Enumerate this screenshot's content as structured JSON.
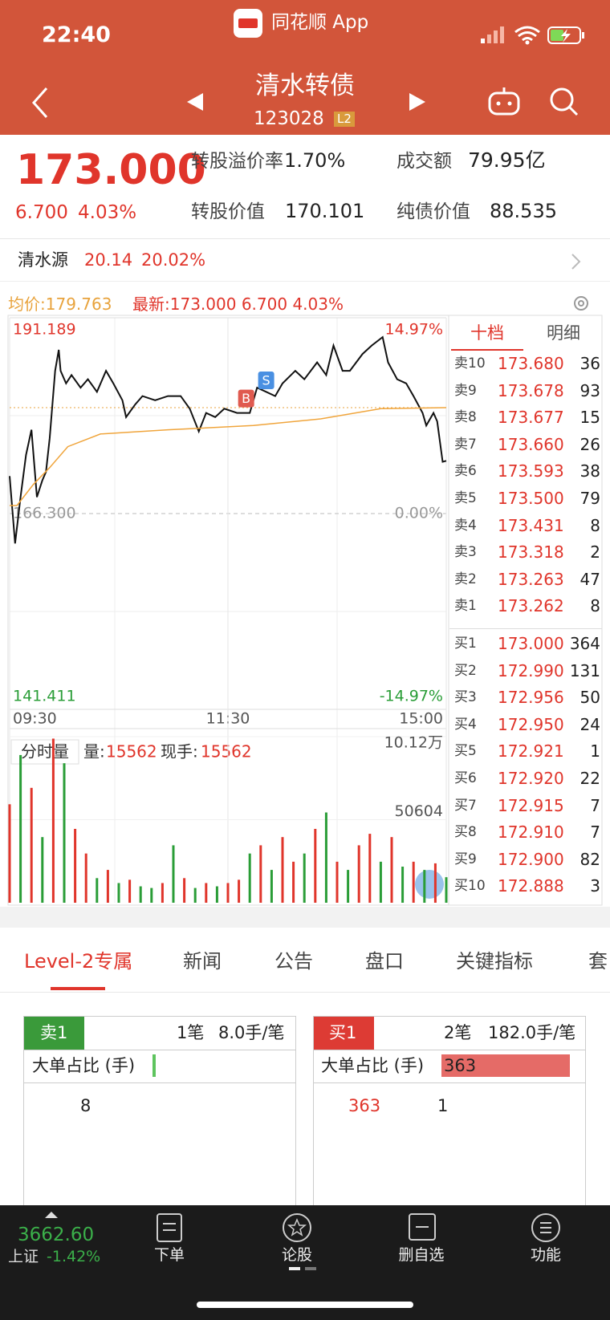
{
  "status": {
    "time": "22:40",
    "app": "同花顺 App"
  },
  "header": {
    "title": "清水转债",
    "code": "123028",
    "badge": "L2"
  },
  "quote": {
    "price": "173.000",
    "change": "6.700",
    "change_pct": "4.03%",
    "fields": [
      [
        "转股溢价率",
        "1.70%"
      ],
      [
        "成交额",
        "79.95亿"
      ],
      [
        "转股价值",
        "170.101"
      ],
      [
        "纯债价值",
        "88.535"
      ]
    ]
  },
  "stock": {
    "name": "清水源",
    "price": "20.14",
    "change_pct": "20.02%"
  },
  "chart_data": [
    {
      "type": "line",
      "avg_label": "均价:",
      "avg_price": 179.763,
      "latest_label": "最新:",
      "xlim": [
        0,
        240
      ],
      "xticks": [
        {
          "value": 0,
          "label": "09:30"
        },
        {
          "value": 120,
          "label": "11:30"
        },
        {
          "value": 240,
          "label": "15:00"
        }
      ],
      "ylim": [
        141.411,
        191.189
      ],
      "yticks": [
        141.411,
        {
          "value": 166.3,
          "label": "166.300"
        },
        191.189
      ],
      "pct_labels": [
        "-14.97%",
        "0.00%",
        "14.97%"
      ],
      "series": [
        {
          "color": "#111111",
          "x": [
            0,
            3,
            6,
            9,
            12,
            15,
            18,
            20,
            22,
            25,
            27,
            28,
            31,
            34,
            39,
            43,
            48,
            53,
            57,
            62,
            64,
            69,
            73,
            80,
            87,
            94,
            99,
            104,
            108,
            113,
            118,
            125,
            132,
            136,
            141,
            146,
            150,
            157,
            162,
            169,
            174,
            178,
            183,
            187,
            194,
            199,
            205,
            208,
            213,
            218,
            222,
            227,
            229,
            233,
            235,
            238,
            240
          ],
          "values": [
            171.06,
            162.5,
            168.39,
            173.74,
            176.95,
            168.39,
            170.53,
            171.6,
            175.88,
            184.45,
            187.12,
            184.45,
            182.84,
            183.91,
            182.3,
            183.38,
            181.77,
            184.45,
            182.84,
            180.7,
            178.56,
            180.16,
            181.23,
            180.7,
            181.23,
            181.23,
            179.63,
            176.74,
            179.09,
            178.56,
            179.63,
            179.09,
            179.09,
            182.3,
            181.77,
            181.23,
            182.84,
            184.45,
            183.38,
            185.52,
            183.91,
            187.66,
            184.45,
            184.45,
            186.59,
            187.66,
            188.73,
            185.52,
            183.38,
            182.84,
            181.23,
            179.09,
            177.49,
            179.09,
            178.02,
            172.88,
            173.0
          ]
        },
        {
          "color": "#f0a53c",
          "x": [
            0,
            4,
            13,
            22,
            32,
            50,
            87,
            134,
            171,
            204,
            240
          ],
          "values": [
            167.32,
            167.32,
            169.99,
            172.14,
            174.81,
            176.42,
            176.95,
            177.49,
            178.34,
            179.63,
            179.76
          ]
        }
      ],
      "trades": [
        {
          "label": "B",
          "x": 130,
          "price": 179.5,
          "color": "#e05a4f"
        },
        {
          "label": "S",
          "x": 141,
          "price": 181.8,
          "color": "#4a90e2"
        }
      ]
    },
    {
      "type": "bar",
      "title": "分时量",
      "volume_label": "量:",
      "volume": 15562,
      "hand_label": "现手:",
      "hand": 15562,
      "xlim": [
        0,
        240
      ],
      "ylim": [
        0,
        101208
      ],
      "yticks": [
        50604,
        {
          "value": 101200,
          "label": "10.12万"
        }
      ],
      "x": [
        0,
        6,
        12,
        18,
        24,
        30,
        36,
        42,
        48,
        54,
        60,
        66,
        72,
        78,
        84,
        90,
        96,
        102,
        108,
        114,
        120,
        126,
        132,
        138,
        144,
        150,
        156,
        162,
        168,
        174,
        180,
        186,
        192,
        198,
        204,
        210,
        216,
        222,
        228,
        234,
        240
      ],
      "values": [
        60000,
        90000,
        70000,
        40000,
        100000,
        85000,
        45000,
        30000,
        15000,
        20000,
        12000,
        14000,
        10000,
        9000,
        12000,
        35000,
        15000,
        9000,
        12000,
        10000,
        12000,
        14000,
        30000,
        35000,
        20000,
        40000,
        25000,
        30000,
        45000,
        55000,
        25000,
        20000,
        35000,
        42000,
        25000,
        40000,
        22000,
        25000,
        20000,
        24000,
        15562
      ],
      "colors": [
        "#e0352b",
        "#2a9d37",
        "#e0352b",
        "#2a9d37",
        "#e0352b",
        "#2a9d37",
        "#e0352b",
        "#e0352b",
        "#2a9d37",
        "#e0352b",
        "#2a9d37",
        "#e0352b",
        "#2a9d37",
        "#2a9d37",
        "#e0352b",
        "#2a9d37",
        "#e0352b",
        "#2a9d37",
        "#e0352b",
        "#2a9d37",
        "#e0352b",
        "#e0352b",
        "#2a9d37",
        "#e0352b",
        "#2a9d37",
        "#e0352b",
        "#e0352b",
        "#2a9d37",
        "#e0352b",
        "#2a9d37",
        "#e0352b",
        "#2a9d37",
        "#e0352b",
        "#e0352b",
        "#2a9d37",
        "#e0352b",
        "#2a9d37",
        "#e0352b",
        "#2a9d37",
        "#e0352b",
        "#2a9d37"
      ]
    }
  ],
  "order_book": {
    "tabs": [
      "十档",
      "明细"
    ],
    "asks": [
      [
        "卖10",
        "173.680",
        "36"
      ],
      [
        "卖9",
        "173.678",
        "93"
      ],
      [
        "卖8",
        "173.677",
        "15"
      ],
      [
        "卖7",
        "173.660",
        "26"
      ],
      [
        "卖6",
        "173.593",
        "38"
      ],
      [
        "卖5",
        "173.500",
        "79"
      ],
      [
        "卖4",
        "173.431",
        "8"
      ],
      [
        "卖3",
        "173.318",
        "2"
      ],
      [
        "卖2",
        "173.263",
        "47"
      ],
      [
        "卖1",
        "173.262",
        "8"
      ]
    ],
    "bids": [
      [
        "买1",
        "173.000",
        "364"
      ],
      [
        "买2",
        "172.990",
        "131"
      ],
      [
        "买3",
        "172.956",
        "50"
      ],
      [
        "买4",
        "172.950",
        "24"
      ],
      [
        "买5",
        "172.921",
        "1"
      ],
      [
        "买6",
        "172.920",
        "22"
      ],
      [
        "买7",
        "172.915",
        "7"
      ],
      [
        "买8",
        "172.910",
        "7"
      ],
      [
        "买9",
        "172.900",
        "82"
      ],
      [
        "买10",
        "172.888",
        "3"
      ]
    ]
  },
  "tabs": [
    "Level-2专属",
    "新闻",
    "公告",
    "盘口",
    "关键指标",
    "套"
  ],
  "level2": {
    "sell": {
      "label": "卖1",
      "orders": "1笔",
      "per": "8.0手/笔",
      "big_label": "大单占比 (手)",
      "big": 8,
      "queue": [
        8
      ]
    },
    "buy": {
      "label": "买1",
      "orders": "2笔",
      "per": "182.0手/笔",
      "big_label": "大单占比 (手)",
      "big": 363,
      "queue": [
        363,
        1
      ]
    }
  },
  "bottom_bar": {
    "index": "3662.60",
    "name": "上证",
    "change": "-1.42%",
    "buttons": [
      "下单",
      "论股",
      "删自选",
      "功能"
    ]
  }
}
